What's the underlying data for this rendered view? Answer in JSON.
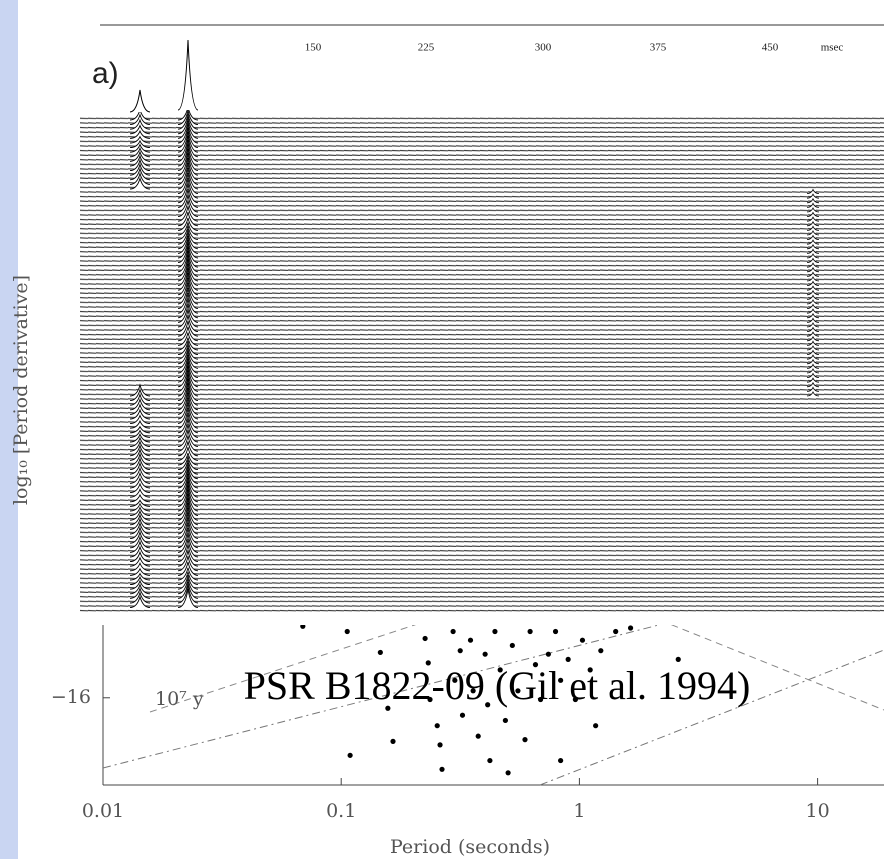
{
  "chart_data": {
    "type": "scatter",
    "caption": "PSR B1822-09 (Gil et al. 1994)",
    "x_label": "Period (seconds)",
    "y_label": "log₁₀ [Period derivative]",
    "annotation": "10⁷ y",
    "x_log_scale": true,
    "color": "#000000",
    "xlim": [
      0.01,
      19
    ],
    "xticks": [
      0.01,
      0.1,
      1,
      10
    ],
    "ylim": [
      -16.5,
      -12
    ],
    "yticks": [
      {
        "value": -16,
        "label": "−16"
      }
    ],
    "x": [
      0.069,
      0.106,
      0.109,
      0.146,
      0.165,
      0.157,
      0.225,
      0.232,
      0.236,
      0.253,
      0.265,
      0.295,
      0.3,
      0.316,
      0.323,
      0.349,
      0.358,
      0.376,
      0.402,
      0.412,
      0.421,
      0.442,
      0.465,
      0.489,
      0.502,
      0.523,
      0.552,
      0.591,
      0.621,
      0.654,
      0.687,
      0.741,
      0.794,
      0.834,
      0.897,
      0.962,
      1.03,
      1.11,
      1.23,
      1.42,
      1.64,
      2.6,
      1.17,
      0.834,
      0.26
    ],
    "values": [
      -15.59,
      -15.62,
      -16.33,
      -15.74,
      -16.25,
      -16.06,
      -15.66,
      -15.8,
      -16.01,
      -16.16,
      -16.41,
      -15.62,
      -15.9,
      -15.73,
      -16.1,
      -15.67,
      -15.96,
      -16.22,
      -15.75,
      -16.04,
      -16.36,
      -15.62,
      -15.84,
      -16.13,
      -16.43,
      -15.7,
      -15.96,
      -16.24,
      -15.62,
      -15.81,
      -16.01,
      -15.75,
      -15.62,
      -15.9,
      -15.78,
      -16.01,
      -15.67,
      -15.84,
      -15.73,
      -15.62,
      -15.6,
      -15.78,
      -16.16,
      -16.36,
      -16.27
    ]
  },
  "inset": {
    "panel_label": "a)",
    "tick_labels": [
      "150",
      "225",
      "300",
      "375",
      "450"
    ],
    "unit": "msec"
  }
}
